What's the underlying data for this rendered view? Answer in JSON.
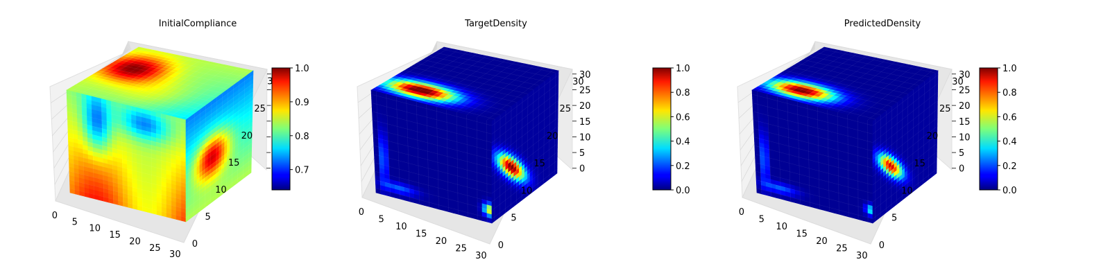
{
  "figure": {
    "background": "#ffffff"
  },
  "chart_data": [
    {
      "type": "heatmap",
      "title": "InitialCompliance",
      "colormap": "jet",
      "colorbar": {
        "range": [
          0.64,
          1.0
        ],
        "ticks": [
          "1.0",
          "0.9",
          "0.8",
          "0.7"
        ],
        "tick_values": [
          1.0,
          0.9,
          0.8,
          0.7
        ]
      },
      "x_ticks": [
        "0",
        "5",
        "10",
        "15",
        "20",
        "25",
        "30"
      ],
      "y_ticks": [
        "0",
        "5",
        "10",
        "15",
        "20",
        "25",
        "30"
      ],
      "z_ticks": [],
      "grid": "32x32x32 voxels",
      "faces": {
        "top": "mostly green/teal with red-orange hotspot near back-left",
        "front": "teal/green with blue streaks near top, yellow-green toward bottom",
        "right": "blue at top with orange-yellow blob at center"
      }
    },
    {
      "type": "heatmap",
      "title": "TargetDensity",
      "colormap": "jet",
      "colorbar": {
        "range": [
          0.0,
          1.0
        ],
        "ticks": [
          "1.0",
          "0.8",
          "0.6",
          "0.4",
          "0.2",
          "0.0"
        ],
        "tick_values": [
          1.0,
          0.8,
          0.6,
          0.4,
          0.2,
          0.0
        ]
      },
      "x_ticks": [
        "0",
        "5",
        "10",
        "15",
        "20",
        "25",
        "30"
      ],
      "y_ticks": [
        "0",
        "5",
        "10",
        "15",
        "20",
        "25",
        "30"
      ],
      "z_ticks": [
        "0",
        "5",
        "10",
        "15",
        "20",
        "25",
        "30"
      ],
      "grid": "32x32x32 voxels",
      "faces": {
        "top": "dark blue with red (1.0) blob near back-left corner",
        "front": "dark blue with faint red traces",
        "right": "dark blue with red diagonal bar near center-front"
      }
    },
    {
      "type": "heatmap",
      "title": "PredictedDensity",
      "colormap": "jet",
      "colorbar": {
        "range": [
          0.0,
          1.0
        ],
        "ticks": [
          "1.0",
          "0.8",
          "0.6",
          "0.4",
          "0.2",
          "0.0"
        ],
        "tick_values": [
          1.0,
          0.8,
          0.6,
          0.4,
          0.2,
          0.0
        ]
      },
      "x_ticks": [
        "0",
        "5",
        "10",
        "15",
        "20",
        "25",
        "30"
      ],
      "y_ticks": [
        "0",
        "5",
        "10",
        "15",
        "20",
        "25",
        "30"
      ],
      "z_ticks": [
        "0",
        "5",
        "10",
        "15",
        "20",
        "25",
        "30"
      ],
      "grid": "32x32x32 voxels",
      "faces": {
        "top": "dark blue with red blob near back-left corner",
        "front": "dark blue with faint red traces",
        "right": "dark blue with red diagonal bar near center"
      }
    }
  ]
}
